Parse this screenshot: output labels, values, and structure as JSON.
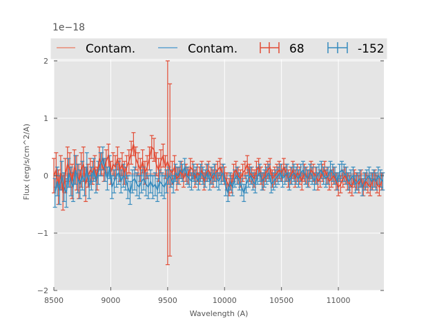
{
  "chart_data": {
    "type": "line",
    "title": "",
    "xlabel": "Wavelength (A)",
    "ylabel": "Flux (erg/s/cm^2/A)",
    "offset_text": "1e−18",
    "xlim": [
      8500,
      11400
    ],
    "ylim": [
      -2,
      2
    ],
    "x_ticks": [
      8500,
      9000,
      9500,
      10000,
      10500,
      11000
    ],
    "x_tick_labels": [
      "8500",
      "9000",
      "9500",
      "10000",
      "10500",
      "11000"
    ],
    "y_ticks": [
      -2,
      -1,
      0,
      1,
      2
    ],
    "y_tick_labels": [
      "−2",
      "−1",
      "0",
      "1",
      "2"
    ],
    "grid": true,
    "legend": {
      "placement": "top",
      "entries": [
        {
          "label": "Contam.",
          "kind": "line",
          "color": "#E8A090"
        },
        {
          "label": "Contam.",
          "kind": "line",
          "color": "#7FB2D5"
        },
        {
          "label": "68",
          "kind": "errorbar",
          "color": "#E24A33"
        },
        {
          "label": "-152",
          "kind": "errorbar",
          "color": "#348ABD"
        }
      ]
    },
    "contam_series": [
      {
        "name": "Contam.",
        "color": "#E8A090",
        "y": 0.03
      },
      {
        "name": "Contam.",
        "color": "#7FB2D5",
        "y": 0.0
      }
    ],
    "series": [
      {
        "name": "68",
        "color": "#E24A33",
        "x": [
          8500,
          8520,
          8540,
          8560,
          8580,
          8600,
          8620,
          8640,
          8660,
          8680,
          8700,
          8720,
          8740,
          8760,
          8780,
          8800,
          8820,
          8840,
          8860,
          8880,
          8900,
          8920,
          8940,
          8960,
          8980,
          9000,
          9020,
          9040,
          9060,
          9080,
          9100,
          9120,
          9140,
          9160,
          9180,
          9200,
          9220,
          9240,
          9260,
          9280,
          9300,
          9320,
          9340,
          9360,
          9380,
          9400,
          9420,
          9440,
          9460,
          9480,
          9500,
          9520,
          9540,
          9560,
          9580,
          9600,
          9620,
          9640,
          9660,
          9680,
          9700,
          9720,
          9740,
          9760,
          9780,
          9800,
          9820,
          9840,
          9860,
          9880,
          9900,
          9920,
          9940,
          9960,
          9980,
          10000,
          10020,
          10040,
          10060,
          10080,
          10100,
          10120,
          10140,
          10160,
          10180,
          10200,
          10220,
          10240,
          10260,
          10280,
          10300,
          10320,
          10340,
          10360,
          10380,
          10400,
          10420,
          10440,
          10460,
          10480,
          10500,
          10520,
          10540,
          10560,
          10580,
          10600,
          10620,
          10640,
          10660,
          10680,
          10700,
          10720,
          10740,
          10760,
          10780,
          10800,
          10820,
          10840,
          10860,
          10880,
          10900,
          10920,
          10940,
          10960,
          10980,
          11000,
          11020,
          11040,
          11060,
          11080,
          11100,
          11120,
          11140,
          11160,
          11180,
          11200,
          11220,
          11240,
          11260,
          11280,
          11300,
          11320,
          11340,
          11360,
          11380
        ],
        "y": [
          0.0,
          0.1,
          -0.2,
          0.05,
          -0.3,
          0.0,
          0.2,
          0.1,
          -0.1,
          0.15,
          0.05,
          -0.1,
          0.1,
          0.2,
          -0.15,
          0.0,
          0.1,
          0.05,
          0.15,
          -0.05,
          0.3,
          0.2,
          0.1,
          0.25,
          0.35,
          0.05,
          0.2,
          0.15,
          0.3,
          0.1,
          0.2,
          0.05,
          0.15,
          0.25,
          0.4,
          0.55,
          0.3,
          0.2,
          0.1,
          0.25,
          0.05,
          0.15,
          0.3,
          0.5,
          0.45,
          0.2,
          0.1,
          0.25,
          0.35,
          0.15,
          0.25,
          0.1,
          0.05,
          0.15,
          -0.05,
          0.0,
          0.1,
          -0.05,
          0.05,
          0.0,
          0.15,
          0.1,
          -0.05,
          0.05,
          0.0,
          0.1,
          -0.1,
          0.05,
          0.1,
          0.0,
          -0.05,
          0.05,
          0.1,
          0.15,
          0.05,
          0.0,
          -0.1,
          -0.2,
          -0.15,
          0.05,
          0.1,
          0.0,
          -0.05,
          0.05,
          0.1,
          0.2,
          0.05,
          0.0,
          -0.05,
          0.1,
          0.15,
          0.0,
          -0.1,
          0.05,
          0.1,
          0.15,
          -0.05,
          0.0,
          0.05,
          0.1,
          0.05,
          0.15,
          0.05,
          -0.05,
          0.0,
          0.1,
          -0.05,
          0.05,
          0.0,
          -0.1,
          0.05,
          0.0,
          -0.05,
          0.1,
          0.05,
          0.0,
          -0.1,
          -0.05,
          0.05,
          0.1,
          0.0,
          -0.1,
          -0.05,
          0.0,
          -0.1,
          -0.2,
          -0.15,
          -0.05,
          0.0,
          -0.1,
          -0.15,
          -0.2,
          -0.05,
          -0.1,
          -0.15,
          -0.05,
          -0.2,
          -0.1,
          -0.15,
          -0.2,
          -0.1,
          -0.05,
          -0.15,
          -0.2,
          -0.1
        ],
        "yerr": [
          0.3,
          0.3,
          0.3,
          0.3,
          0.3,
          0.3,
          0.3,
          0.3,
          0.3,
          0.3,
          0.3,
          0.3,
          0.3,
          0.3,
          0.3,
          0.2,
          0.2,
          0.2,
          0.2,
          0.2,
          0.2,
          0.2,
          0.2,
          0.2,
          0.2,
          0.2,
          0.2,
          0.2,
          0.2,
          0.2,
          0.2,
          0.2,
          0.2,
          0.2,
          0.2,
          0.2,
          0.2,
          0.2,
          0.2,
          0.2,
          0.2,
          0.2,
          0.2,
          0.2,
          0.2,
          0.2,
          0.2,
          0.2,
          0.2,
          0.2,
          1.8,
          1.5,
          0.2,
          0.2,
          0.2,
          0.15,
          0.15,
          0.15,
          0.15,
          0.15,
          0.15,
          0.15,
          0.15,
          0.15,
          0.15,
          0.15,
          0.15,
          0.15,
          0.15,
          0.15,
          0.15,
          0.15,
          0.15,
          0.15,
          0.15,
          0.15,
          0.15,
          0.15,
          0.15,
          0.15,
          0.15,
          0.15,
          0.15,
          0.15,
          0.15,
          0.15,
          0.15,
          0.15,
          0.15,
          0.15,
          0.15,
          0.15,
          0.15,
          0.15,
          0.15,
          0.15,
          0.15,
          0.15,
          0.15,
          0.15,
          0.15,
          0.15,
          0.15,
          0.15,
          0.15,
          0.15,
          0.15,
          0.15,
          0.15,
          0.15,
          0.15,
          0.15,
          0.15,
          0.15,
          0.15,
          0.15,
          0.15,
          0.15,
          0.15,
          0.15,
          0.15,
          0.15,
          0.15,
          0.15,
          0.15,
          0.15,
          0.15,
          0.15,
          0.15,
          0.15,
          0.15,
          0.15,
          0.15,
          0.15,
          0.15,
          0.15,
          0.15,
          0.15,
          0.15,
          0.15,
          0.15,
          0.15,
          0.15,
          0.15,
          0.15
        ]
      },
      {
        "name": "-152",
        "color": "#348ABD",
        "x": [
          8510,
          8530,
          8550,
          8570,
          8590,
          8610,
          8630,
          8650,
          8670,
          8690,
          8710,
          8730,
          8750,
          8770,
          8790,
          8810,
          8830,
          8850,
          8870,
          8890,
          8910,
          8930,
          8950,
          8970,
          8990,
          9010,
          9030,
          9050,
          9070,
          9090,
          9110,
          9130,
          9150,
          9170,
          9190,
          9210,
          9230,
          9250,
          9270,
          9290,
          9310,
          9330,
          9350,
          9370,
          9390,
          9410,
          9430,
          9450,
          9470,
          9490,
          9510,
          9530,
          9550,
          9570,
          9590,
          9610,
          9630,
          9650,
          9670,
          9690,
          9710,
          9730,
          9750,
          9770,
          9790,
          9810,
          9830,
          9850,
          9870,
          9890,
          9910,
          9930,
          9950,
          9970,
          9990,
          10010,
          10030,
          10050,
          10070,
          10090,
          10110,
          10130,
          10150,
          10170,
          10190,
          10210,
          10230,
          10250,
          10270,
          10290,
          10310,
          10330,
          10350,
          10370,
          10390,
          10410,
          10430,
          10450,
          10470,
          10490,
          10510,
          10530,
          10550,
          10570,
          10590,
          10610,
          10630,
          10650,
          10670,
          10690,
          10710,
          10730,
          10750,
          10770,
          10790,
          10810,
          10830,
          10850,
          10870,
          10890,
          10910,
          10930,
          10950,
          10970,
          10990,
          11010,
          11030,
          11050,
          11070,
          11090,
          11110,
          11130,
          11150,
          11170,
          11190,
          11210,
          11230,
          11250,
          11270,
          11290,
          11310,
          11330,
          11350,
          11370,
          11390
        ],
        "y": [
          -0.3,
          -0.1,
          -0.25,
          0.0,
          -0.2,
          -0.3,
          0.05,
          -0.1,
          -0.2,
          0.1,
          -0.05,
          -0.15,
          0.0,
          -0.1,
          0.15,
          -0.2,
          -0.05,
          0.1,
          -0.1,
          0.05,
          0.2,
          0.3,
          0.1,
          -0.05,
          0.15,
          -0.2,
          -0.1,
          0.0,
          0.05,
          -0.1,
          0.0,
          -0.05,
          -0.2,
          -0.3,
          -0.1,
          -0.05,
          -0.15,
          -0.2,
          -0.1,
          -0.05,
          -0.15,
          -0.2,
          -0.1,
          -0.2,
          -0.15,
          -0.25,
          -0.1,
          -0.15,
          -0.2,
          -0.1,
          0.0,
          -0.05,
          -0.15,
          0.05,
          0.0,
          0.1,
          0.05,
          0.15,
          0.0,
          -0.05,
          -0.1,
          0.05,
          0.0,
          -0.1,
          0.05,
          0.0,
          -0.05,
          0.05,
          -0.1,
          0.0,
          0.05,
          -0.05,
          -0.1,
          0.0,
          0.05,
          -0.2,
          -0.3,
          -0.1,
          -0.2,
          -0.05,
          0.0,
          -0.1,
          -0.2,
          -0.3,
          -0.15,
          -0.05,
          0.0,
          -0.1,
          -0.15,
          0.0,
          0.05,
          -0.1,
          -0.05,
          0.0,
          0.05,
          -0.15,
          -0.1,
          -0.05,
          0.0,
          0.05,
          -0.05,
          0.0,
          0.05,
          -0.1,
          0.0,
          0.05,
          0.0,
          -0.05,
          0.05,
          0.1,
          0.0,
          -0.05,
          0.05,
          0.0,
          -0.1,
          0.0,
          0.05,
          0.1,
          0.0,
          -0.05,
          0.0,
          0.1,
          0.05,
          0.0,
          -0.1,
          0.05,
          0.1,
          0.05,
          0.0,
          -0.1,
          -0.05,
          0.0,
          -0.15,
          -0.1,
          -0.05,
          -0.2,
          -0.1,
          -0.05,
          0.0,
          -0.1,
          -0.05,
          -0.1,
          0.0,
          -0.05,
          -0.1
        ],
        "yerr": [
          0.25,
          0.25,
          0.25,
          0.25,
          0.25,
          0.25,
          0.25,
          0.25,
          0.25,
          0.25,
          0.25,
          0.25,
          0.25,
          0.25,
          0.25,
          0.2,
          0.2,
          0.2,
          0.2,
          0.2,
          0.2,
          0.2,
          0.2,
          0.2,
          0.2,
          0.2,
          0.2,
          0.2,
          0.2,
          0.2,
          0.2,
          0.2,
          0.2,
          0.2,
          0.2,
          0.2,
          0.2,
          0.2,
          0.2,
          0.2,
          0.2,
          0.2,
          0.2,
          0.2,
          0.2,
          0.2,
          0.2,
          0.2,
          0.2,
          0.2,
          0.15,
          0.15,
          0.15,
          0.15,
          0.15,
          0.15,
          0.15,
          0.15,
          0.15,
          0.15,
          0.15,
          0.15,
          0.15,
          0.15,
          0.15,
          0.15,
          0.15,
          0.15,
          0.15,
          0.15,
          0.15,
          0.15,
          0.15,
          0.15,
          0.15,
          0.15,
          0.15,
          0.15,
          0.15,
          0.15,
          0.15,
          0.15,
          0.15,
          0.15,
          0.15,
          0.15,
          0.15,
          0.15,
          0.15,
          0.15,
          0.15,
          0.15,
          0.15,
          0.15,
          0.15,
          0.15,
          0.15,
          0.15,
          0.15,
          0.15,
          0.15,
          0.15,
          0.15,
          0.15,
          0.15,
          0.15,
          0.15,
          0.15,
          0.15,
          0.15,
          0.15,
          0.15,
          0.15,
          0.15,
          0.15,
          0.15,
          0.15,
          0.15,
          0.15,
          0.15,
          0.15,
          0.15,
          0.15,
          0.15,
          0.15,
          0.15,
          0.15,
          0.15,
          0.15,
          0.15,
          0.15,
          0.15,
          0.15,
          0.15,
          0.15,
          0.15,
          0.15,
          0.15,
          0.15,
          0.15,
          0.15,
          0.15,
          0.15,
          0.15,
          0.15
        ]
      }
    ]
  }
}
